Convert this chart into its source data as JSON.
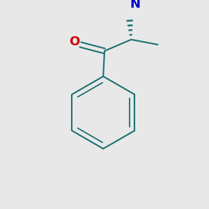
{
  "background_color": "#e8e8e8",
  "bond_color": "#1a7070",
  "oxygen_color": "#cc0000",
  "nitrogen_color": "#0000cc",
  "line_width": 1.5,
  "lw_inner": 1.3
}
